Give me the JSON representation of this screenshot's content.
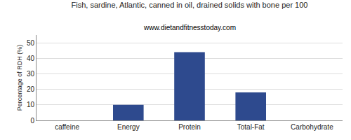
{
  "chart_data": {
    "type": "bar",
    "title": "Fish, sardine, Atlantic, canned in oil, drained solids with bone per 100",
    "subtitle": "www.dietandfitnesstoday.com",
    "categories": [
      "caffeine",
      "Energy",
      "Protein",
      "Total-Fat",
      "Carbohydrate"
    ],
    "values": [
      0,
      10,
      44,
      18,
      0
    ],
    "color": "#2e4a8e",
    "ylabel": "Percentage of RDH (%)",
    "ylim": [
      0,
      55
    ],
    "yticks": [
      0,
      10,
      20,
      30,
      40,
      50
    ],
    "grid": true
  }
}
